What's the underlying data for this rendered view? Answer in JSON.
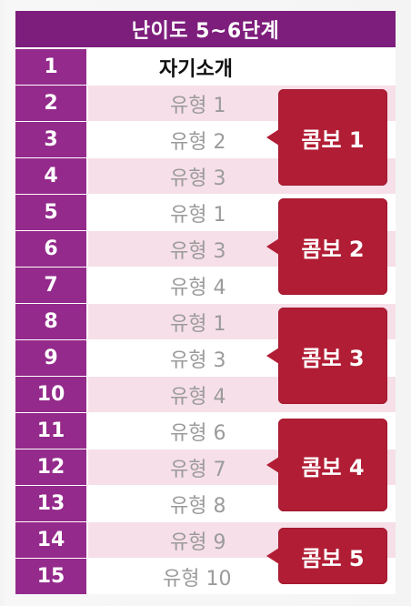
{
  "title": "난이도 5~6단계",
  "rows": [
    {
      "num": "1",
      "label": "자기소개"
    },
    {
      "num": "2",
      "label": "유형 1"
    },
    {
      "num": "3",
      "label": "유형 2"
    },
    {
      "num": "4",
      "label": "유형 3"
    },
    {
      "num": "5",
      "label": "유형 1"
    },
    {
      "num": "6",
      "label": "유형 3"
    },
    {
      "num": "7",
      "label": "유형 4"
    },
    {
      "num": "8",
      "label": "유형 1"
    },
    {
      "num": "9",
      "label": "유형 3"
    },
    {
      "num": "10",
      "label": "유형 4"
    },
    {
      "num": "11",
      "label": "유형 6"
    },
    {
      "num": "12",
      "label": "유형 7"
    },
    {
      "num": "13",
      "label": "유형 8"
    },
    {
      "num": "14",
      "label": "유형 9"
    },
    {
      "num": "15",
      "label": "유형 10"
    }
  ],
  "combos": [
    "콤보 1",
    "콤보 2",
    "콤보 3",
    "콤보 4",
    "콤보 5"
  ],
  "colors": {
    "header_bg": "#7d1d7c",
    "number_bg": "#942a8b",
    "pink_row": "#f6dfe8",
    "combo_bg": "#b11d34",
    "type_text": "#9b9b9b"
  }
}
